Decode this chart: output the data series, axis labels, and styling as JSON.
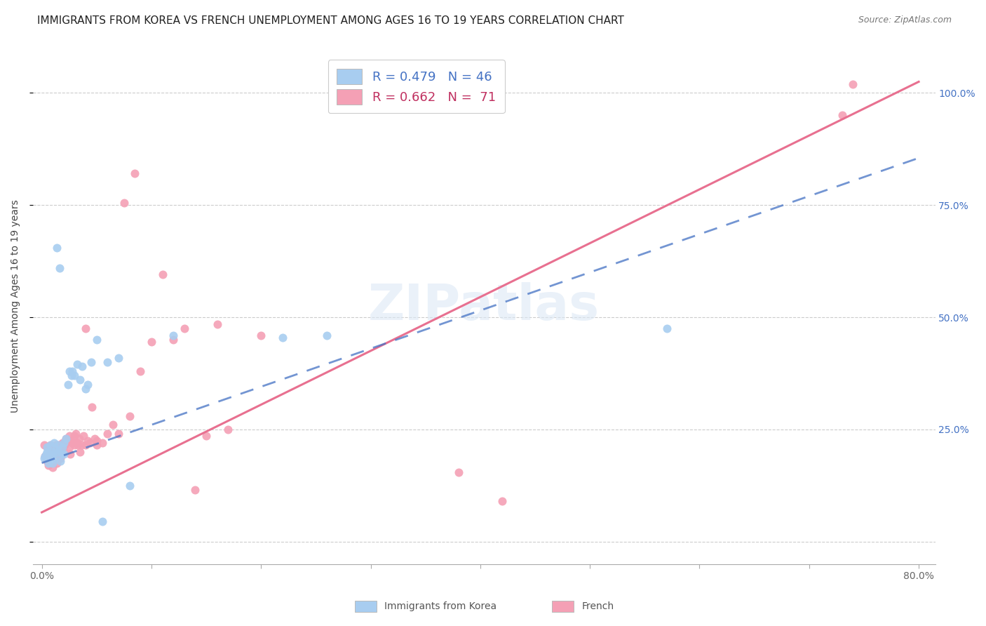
{
  "title": "IMMIGRANTS FROM KOREA VS FRENCH UNEMPLOYMENT AMONG AGES 16 TO 19 YEARS CORRELATION CHART",
  "source": "Source: ZipAtlas.com",
  "ylabel": "Unemployment Among Ages 16 to 19 years",
  "xlim": [
    0.0,
    0.8
  ],
  "ylim": [
    -0.05,
    1.1
  ],
  "legend_entry1_r": "0.479",
  "legend_entry1_n": "46",
  "legend_entry2_r": "0.662",
  "legend_entry2_n": "71",
  "legend_color1": "#a8cdf0",
  "legend_color2": "#f4a0b5",
  "korea_line_color": "#4472c4",
  "french_line_color": "#e87090",
  "korea_scatter_color": "#a8cdf0",
  "french_scatter_color": "#f4a0b5",
  "korea_line_intercept": 0.175,
  "korea_line_slope": 0.85,
  "french_line_intercept": 0.065,
  "french_line_slope": 1.2,
  "background_color": "#ffffff",
  "title_fontsize": 11,
  "axis_label_fontsize": 10,
  "tick_fontsize": 10,
  "source_fontsize": 9,
  "ytick_vals": [
    0.0,
    0.25,
    0.5,
    0.75,
    1.0
  ],
  "ytick_labels": [
    "",
    "25.0%",
    "50.0%",
    "75.0%",
    "100.0%"
  ],
  "xtick_vals": [
    0.0,
    0.1,
    0.2,
    0.3,
    0.4,
    0.5,
    0.6,
    0.7,
    0.8
  ],
  "xtick_labels": [
    "0.0%",
    "",
    "",
    "",
    "",
    "",
    "",
    "",
    "80.0%"
  ],
  "korea_x": [
    0.002,
    0.003,
    0.004,
    0.005,
    0.005,
    0.006,
    0.007,
    0.008,
    0.008,
    0.009,
    0.01,
    0.01,
    0.01,
    0.011,
    0.012,
    0.013,
    0.014,
    0.015,
    0.015,
    0.016,
    0.017,
    0.018,
    0.019,
    0.02,
    0.02,
    0.022,
    0.024,
    0.025,
    0.027,
    0.028,
    0.03,
    0.032,
    0.035,
    0.037,
    0.04,
    0.042,
    0.045,
    0.05,
    0.055,
    0.06,
    0.07,
    0.08,
    0.12,
    0.22,
    0.26,
    0.57
  ],
  "korea_y": [
    0.185,
    0.19,
    0.195,
    0.2,
    0.21,
    0.175,
    0.195,
    0.185,
    0.215,
    0.19,
    0.2,
    0.195,
    0.175,
    0.22,
    0.185,
    0.205,
    0.655,
    0.2,
    0.215,
    0.61,
    0.18,
    0.195,
    0.21,
    0.22,
    0.195,
    0.23,
    0.35,
    0.38,
    0.37,
    0.38,
    0.37,
    0.395,
    0.36,
    0.39,
    0.34,
    0.35,
    0.4,
    0.45,
    0.045,
    0.4,
    0.41,
    0.125,
    0.46,
    0.455,
    0.46,
    0.475
  ],
  "french_x": [
    0.002,
    0.003,
    0.004,
    0.005,
    0.005,
    0.006,
    0.007,
    0.008,
    0.008,
    0.009,
    0.01,
    0.01,
    0.011,
    0.012,
    0.013,
    0.014,
    0.015,
    0.015,
    0.016,
    0.017,
    0.018,
    0.019,
    0.02,
    0.02,
    0.021,
    0.022,
    0.023,
    0.024,
    0.025,
    0.025,
    0.026,
    0.027,
    0.028,
    0.03,
    0.03,
    0.031,
    0.032,
    0.033,
    0.034,
    0.035,
    0.036,
    0.038,
    0.04,
    0.04,
    0.042,
    0.044,
    0.046,
    0.048,
    0.05,
    0.05,
    0.055,
    0.06,
    0.065,
    0.07,
    0.075,
    0.08,
    0.085,
    0.09,
    0.1,
    0.11,
    0.12,
    0.13,
    0.14,
    0.15,
    0.16,
    0.17,
    0.2,
    0.38,
    0.42,
    0.73,
    0.74
  ],
  "french_y": [
    0.215,
    0.19,
    0.185,
    0.18,
    0.21,
    0.17,
    0.195,
    0.185,
    0.215,
    0.2,
    0.165,
    0.21,
    0.2,
    0.195,
    0.215,
    0.175,
    0.195,
    0.215,
    0.2,
    0.185,
    0.21,
    0.22,
    0.2,
    0.22,
    0.215,
    0.23,
    0.225,
    0.225,
    0.21,
    0.235,
    0.195,
    0.225,
    0.22,
    0.215,
    0.235,
    0.24,
    0.22,
    0.215,
    0.23,
    0.2,
    0.215,
    0.235,
    0.215,
    0.475,
    0.225,
    0.22,
    0.3,
    0.23,
    0.215,
    0.225,
    0.22,
    0.24,
    0.26,
    0.24,
    0.755,
    0.28,
    0.82,
    0.38,
    0.445,
    0.595,
    0.45,
    0.475,
    0.115,
    0.235,
    0.485,
    0.25,
    0.46,
    0.155,
    0.09,
    0.95,
    1.02
  ]
}
